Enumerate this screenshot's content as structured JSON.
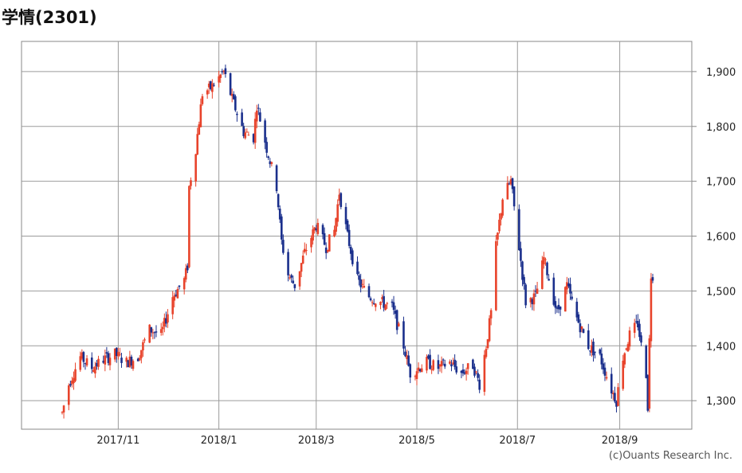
{
  "title": "学情(2301)",
  "credit": "(c)Ouants Research Inc.",
  "chart_data": {
    "type": "candlestick",
    "x_tick_labels": [
      "2017/11",
      "2018/1",
      "2018/3",
      "2018/5",
      "2018/7",
      "2018/9"
    ],
    "y_tick_labels": [
      "1,300",
      "1,400",
      "1,500",
      "1,600",
      "1,700",
      "1,800",
      "1,900"
    ],
    "y_ticks": [
      1300,
      1400,
      1500,
      1600,
      1700,
      1800,
      1900
    ],
    "ylim": [
      1250,
      1960
    ],
    "grid": true,
    "colors": {
      "up": "#e8432b",
      "down": "#1a2f8c",
      "grid": "#9b9b9b",
      "axis": "#888888"
    },
    "trend": [
      [
        "2017-09-27",
        1265
      ],
      [
        "2017-10-02",
        1330
      ],
      [
        "2017-10-09",
        1380
      ],
      [
        "2017-10-16",
        1360
      ],
      [
        "2017-10-23",
        1375
      ],
      [
        "2017-10-30",
        1385
      ],
      [
        "2017-11-06",
        1370
      ],
      [
        "2017-11-13",
        1380
      ],
      [
        "2017-11-20",
        1430
      ],
      [
        "2017-11-27",
        1420
      ],
      [
        "2017-12-04",
        1490
      ],
      [
        "2017-12-11",
        1520
      ],
      [
        "2017-12-13",
        1545
      ],
      [
        "2017-12-14",
        1690
      ],
      [
        "2017-12-18",
        1760
      ],
      [
        "2017-12-22",
        1860
      ],
      [
        "2017-12-27",
        1870
      ],
      [
        "2018-01-04",
        1900
      ],
      [
        "2018-01-09",
        1850
      ],
      [
        "2018-01-16",
        1790
      ],
      [
        "2018-01-22",
        1780
      ],
      [
        "2018-01-24",
        1840
      ],
      [
        "2018-01-30",
        1760
      ],
      [
        "2018-02-05",
        1690
      ],
      [
        "2018-02-08",
        1590
      ],
      [
        "2018-02-12",
        1530
      ],
      [
        "2018-02-16",
        1510
      ],
      [
        "2018-02-22",
        1570
      ],
      [
        "2018-03-01",
        1620
      ],
      [
        "2018-03-07",
        1580
      ],
      [
        "2018-03-12",
        1610
      ],
      [
        "2018-03-15",
        1680
      ],
      [
        "2018-03-20",
        1600
      ],
      [
        "2018-03-26",
        1520
      ],
      [
        "2018-04-02",
        1490
      ],
      [
        "2018-04-09",
        1480
      ],
      [
        "2018-04-16",
        1470
      ],
      [
        "2018-04-23",
        1400
      ],
      [
        "2018-04-27",
        1350
      ],
      [
        "2018-05-07",
        1370
      ],
      [
        "2018-05-14",
        1360
      ],
      [
        "2018-05-21",
        1370
      ],
      [
        "2018-05-28",
        1350
      ],
      [
        "2018-06-04",
        1365
      ],
      [
        "2018-06-08",
        1330
      ],
      [
        "2018-06-12",
        1400
      ],
      [
        "2018-06-15",
        1460
      ],
      [
        "2018-06-18",
        1580
      ],
      [
        "2018-06-22",
        1670
      ],
      [
        "2018-06-27",
        1700
      ],
      [
        "2018-07-02",
        1580
      ],
      [
        "2018-07-06",
        1480
      ],
      [
        "2018-07-12",
        1490
      ],
      [
        "2018-07-17",
        1560
      ],
      [
        "2018-07-25",
        1460
      ],
      [
        "2018-07-31",
        1510
      ],
      [
        "2018-08-06",
        1450
      ],
      [
        "2018-08-13",
        1400
      ],
      [
        "2018-08-20",
        1380
      ],
      [
        "2018-08-27",
        1320
      ],
      [
        "2018-08-30",
        1300
      ],
      [
        "2018-09-03",
        1380
      ],
      [
        "2018-09-07",
        1420
      ],
      [
        "2018-09-12",
        1440
      ],
      [
        "2018-09-14",
        1400
      ],
      [
        "2018-09-17",
        1350
      ],
      [
        "2018-09-18",
        1290
      ],
      [
        "2018-09-20",
        1530
      ]
    ],
    "volatility": 14,
    "x_start": "2017-09-28",
    "x_end": "2018-09-21"
  }
}
